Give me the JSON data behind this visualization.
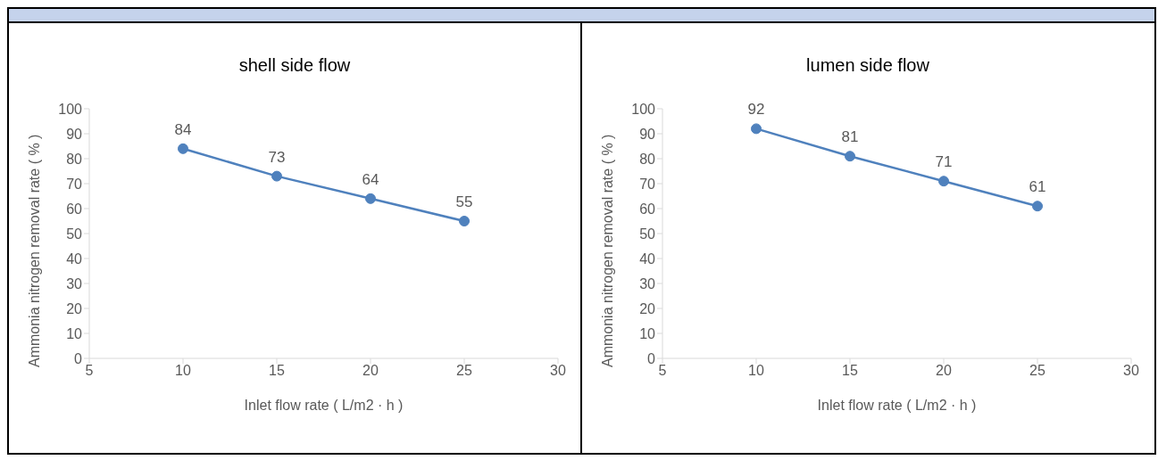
{
  "chart_data": [
    {
      "type": "line",
      "title": "shell side flow",
      "xlabel": "Inlet flow rate ( L/m2 · h )",
      "ylabel": "Ammonia nitrogen removal rate ( % )",
      "x": [
        10,
        15,
        20,
        25
      ],
      "series": [
        {
          "color": "#4f81bd",
          "values": [
            84,
            73,
            64,
            55
          ]
        }
      ],
      "xlim": [
        5,
        30
      ],
      "xticks": [
        5,
        10,
        15,
        20,
        25,
        30
      ],
      "ylim": [
        0,
        100
      ],
      "yticks": [
        0,
        10,
        20,
        30,
        40,
        50,
        60,
        70,
        80,
        90,
        100
      ],
      "marker": "circle",
      "data_labels": true
    },
    {
      "type": "line",
      "title": "lumen side flow",
      "xlabel": "Inlet flow rate ( L/m2 · h )",
      "ylabel": "Ammonia nitrogen removal rate ( % )",
      "x": [
        10,
        15,
        20,
        25
      ],
      "series": [
        {
          "color": "#4f81bd",
          "values": [
            92,
            81,
            71,
            61
          ]
        }
      ],
      "xlim": [
        5,
        30
      ],
      "xticks": [
        5,
        10,
        15,
        20,
        25,
        30
      ],
      "ylim": [
        0,
        100
      ],
      "yticks": [
        0,
        10,
        20,
        30,
        40,
        50,
        60,
        70,
        80,
        90,
        100
      ],
      "marker": "circle",
      "data_labels": true
    }
  ]
}
